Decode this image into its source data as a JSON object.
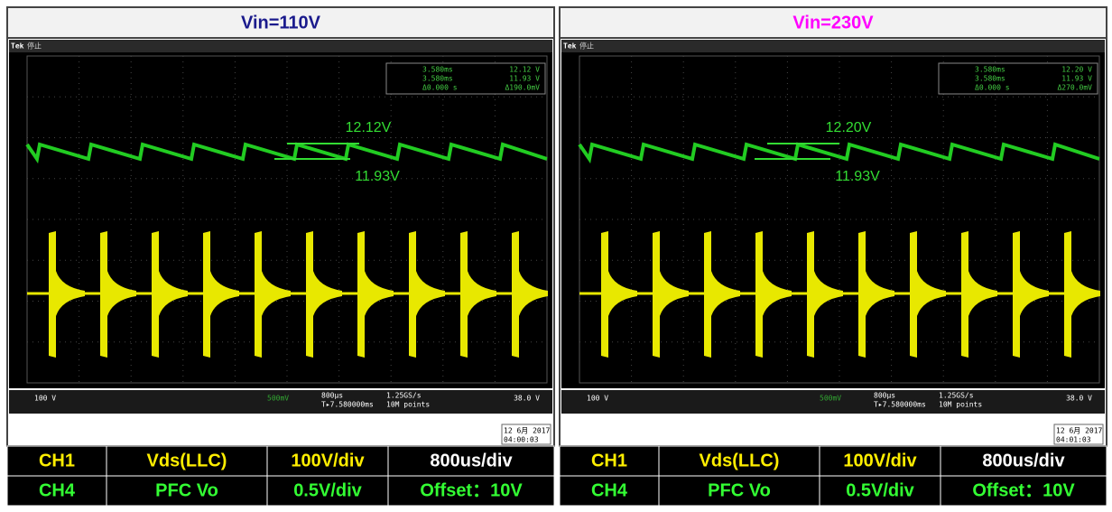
{
  "panels": [
    {
      "title": "Vin=110V",
      "title_color": "#1a1a8c",
      "scope": {
        "brand": "Tek",
        "status": "停止",
        "cursor": [
          "3.580ms",
          "12.12 V",
          "3.580ms",
          "11.93 V",
          "Δ0.000 s",
          "Δ190.0mV"
        ],
        "annotations": [
          "12.12V",
          "11.93V"
        ],
        "readout": [
          "100 V",
          "500mV",
          "800µs",
          "T▸7.580000ms",
          "1.25GS/s",
          "10M points",
          "38.0 V"
        ],
        "date": "12 6月 2017",
        "time": "04:00:03"
      },
      "table": [
        [
          "CH1",
          "Vds(LLC)",
          "100V/div",
          "800us/div"
        ],
        [
          "CH4",
          "PFC Vo",
          "0.5V/div",
          "Offset：10V"
        ]
      ]
    },
    {
      "title": "Vin=230V",
      "title_color": "#ff00ff",
      "scope": {
        "brand": "Tek",
        "status": "停止",
        "cursor": [
          "3.580ms",
          "12.20 V",
          "3.580ms",
          "11.93 V",
          "Δ0.000 s",
          "Δ270.0mV"
        ],
        "annotations": [
          "12.20V",
          "11.93V"
        ],
        "readout": [
          "100 V",
          "500mV",
          "800µs",
          "T▸7.580000ms",
          "1.25GS/s",
          "10M points",
          "38.0 V"
        ],
        "date": "12 6月 2017",
        "time": "04:01:03"
      },
      "table": [
        [
          "CH1",
          "Vds(LLC)",
          "100V/div",
          "800us/div"
        ],
        [
          "CH4",
          "PFC Vo",
          "0.5V/div",
          "Offset：10V"
        ]
      ]
    }
  ]
}
